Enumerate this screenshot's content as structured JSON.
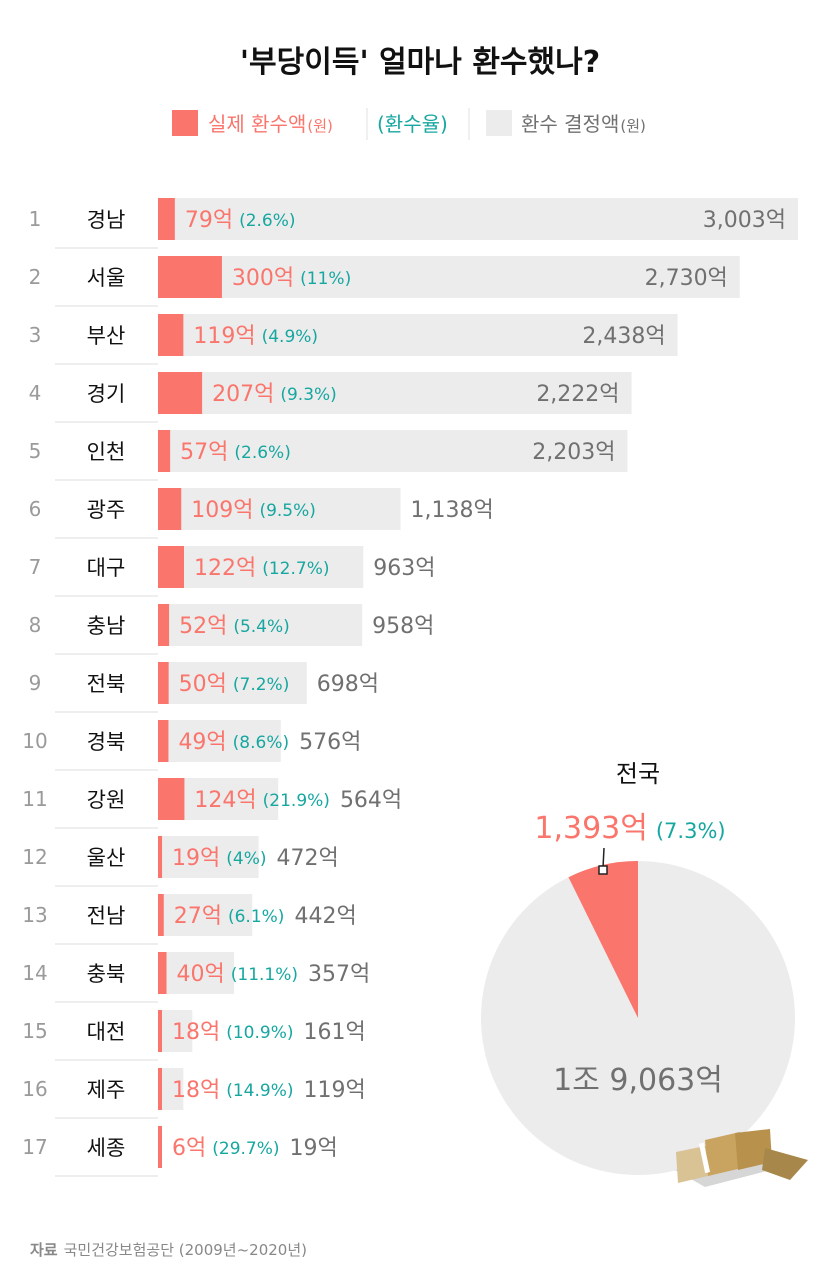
{
  "title": "'부당이득' 얼마나 환수했나?",
  "legend": {
    "actual": "실제 환수액",
    "actual_unit": "(원)",
    "rate": "(환수율)",
    "decided": "환수 결정액",
    "decided_unit": "(원)"
  },
  "colors": {
    "actual": "#fa756c",
    "rate": "#16a7a0",
    "decided": "#ececec",
    "decided_text": "#707070"
  },
  "unit_suffix": "억",
  "chart_data": [
    {
      "type": "bar",
      "orientation": "horizontal",
      "categories": [
        "경남",
        "서울",
        "부산",
        "경기",
        "인천",
        "광주",
        "대구",
        "충남",
        "전북",
        "경북",
        "강원",
        "울산",
        "전남",
        "충북",
        "대전",
        "제주",
        "세종"
      ],
      "ranks": [
        "1",
        "2",
        "3",
        "4",
        "5",
        "6",
        "7",
        "8",
        "9",
        "10",
        "11",
        "12",
        "13",
        "14",
        "15",
        "16",
        "17"
      ],
      "series": [
        {
          "name": "실제 환수액",
          "values": [
            79,
            300,
            119,
            207,
            57,
            109,
            122,
            52,
            50,
            49,
            124,
            19,
            27,
            40,
            18,
            18,
            6
          ],
          "labels": [
            "79억",
            "300억",
            "119억",
            "207억",
            "57억",
            "109억",
            "122억",
            "52억",
            "50억",
            "49억",
            "124억",
            "19억",
            "27억",
            "40억",
            "18억",
            "18억",
            "6억"
          ]
        },
        {
          "name": "환수율",
          "values": [
            2.6,
            11,
            4.9,
            9.3,
            2.6,
            9.5,
            12.7,
            5.4,
            7.2,
            8.6,
            21.9,
            4,
            6.1,
            11.1,
            10.9,
            14.9,
            29.7
          ],
          "labels": [
            "(2.6%)",
            "(11%)",
            "(4.9%)",
            "(9.3%)",
            "(2.6%)",
            "(9.5%)",
            "(12.7%)",
            "(5.4%)",
            "(7.2%)",
            "(8.6%)",
            "(21.9%)",
            "(4%)",
            "(6.1%)",
            "(11.1%)",
            "(10.9%)",
            "(14.9%)",
            "(29.7%)"
          ]
        },
        {
          "name": "환수 결정액",
          "values": [
            3003,
            2730,
            2438,
            2222,
            2203,
            1138,
            963,
            958,
            698,
            576,
            564,
            472,
            442,
            357,
            161,
            119,
            19
          ],
          "labels": [
            "3,003억",
            "2,730억",
            "2,438억",
            "2,222억",
            "2,203억",
            "1,138억",
            "963억",
            "958억",
            "698억",
            "576억",
            "564억",
            "472억",
            "442억",
            "357억",
            "161억",
            "119억",
            "19억"
          ]
        }
      ]
    },
    {
      "type": "pie",
      "title": "전국",
      "slices": [
        {
          "name": "실제 환수액",
          "value": 1393,
          "label": "1,393억",
          "rate_label": "(7.3%)",
          "percent": 7.3
        },
        {
          "name": "환수 결정액",
          "value": 19063,
          "label": "1조 9,063억"
        }
      ]
    }
  ],
  "source": {
    "label": "자료",
    "text": "국민건강보험공단 (2009년~2020년)"
  }
}
